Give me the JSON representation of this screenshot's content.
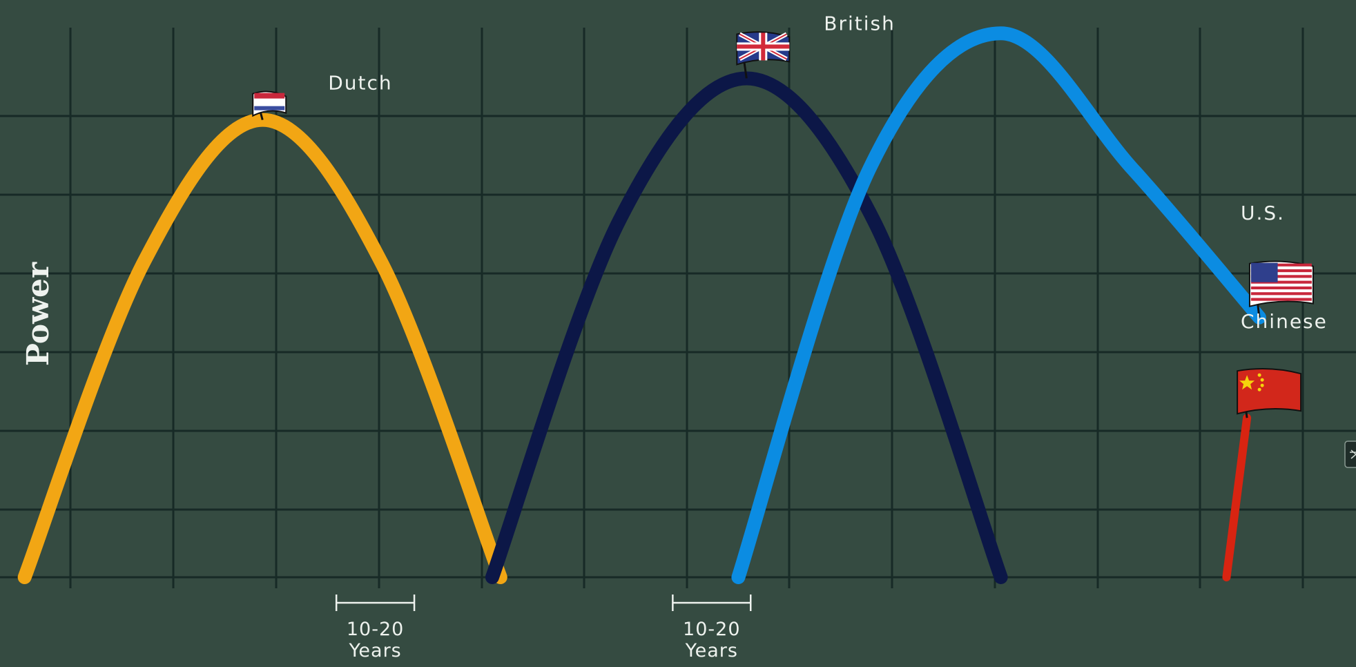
{
  "chart_data": {
    "type": "line",
    "ylabel": "Power",
    "xlabel": "",
    "grid": true,
    "series": [
      {
        "name": "Dutch",
        "color": "#f2a614",
        "icon": "netherlands-flag-icon",
        "x": [
          0.3,
          1.75,
          3.2,
          4.65,
          6.1
        ],
        "y": [
          0.0,
          4.54,
          6.6,
          4.54,
          0.0
        ]
      },
      {
        "name": "British",
        "color": "#0c1747",
        "icon": "uk-flag-icon",
        "x": [
          6.0,
          7.55,
          9.1,
          10.65,
          12.2
        ],
        "y": [
          0.0,
          5.15,
          7.2,
          5.15,
          0.0
        ]
      },
      {
        "name": "U.S.",
        "color": "#0b8ce2",
        "icon": "us-flag-icon",
        "x": [
          9.0,
          10.6,
          12.2,
          13.8,
          15.35
        ],
        "y": [
          0.0,
          5.9,
          7.85,
          5.9,
          3.75
        ]
      },
      {
        "name": "Chinese",
        "color": "#d82411",
        "icon": "china-flag-icon",
        "x": [
          14.95,
          15.2
        ],
        "y": [
          0.0,
          2.3
        ]
      }
    ],
    "annotations": [
      {
        "name": "gap-dutch-british",
        "line1": "10-20",
        "line2": "Years",
        "x_start": 4.1,
        "x_end": 5.05
      },
      {
        "name": "gap-british-us",
        "line1": "10-20",
        "line2": "Years",
        "x_start": 8.2,
        "x_end": 9.15
      }
    ],
    "xlim": [
      0,
      17
    ],
    "ylim": [
      0,
      8.5
    ]
  }
}
